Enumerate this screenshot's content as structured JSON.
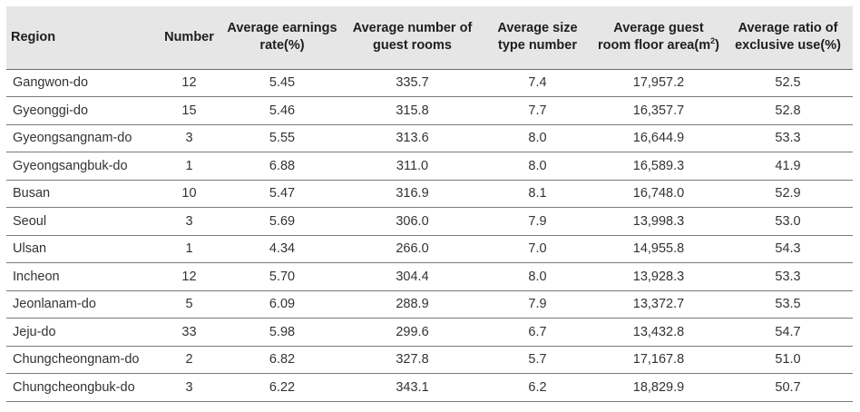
{
  "table": {
    "headers": {
      "region": "Region",
      "number": "Number",
      "earnings": "Average earnings rate(%)",
      "rooms": "Average number of guest rooms",
      "size_type": "Average size type number",
      "floor_area_main": "Average guest room floor area(m",
      "floor_area_sup": "2",
      "floor_area_close": ")",
      "exclusive": "Average ratio of exclusive use(%)"
    },
    "rows": [
      {
        "region": "Gangwon-do",
        "number": "12",
        "earnings": "5.45",
        "rooms": "335.7",
        "size_type": "7.4",
        "floor_area": "17,957.2",
        "exclusive": "52.5"
      },
      {
        "region": "Gyeonggi-do",
        "number": "15",
        "earnings": "5.46",
        "rooms": "315.8",
        "size_type": "7.7",
        "floor_area": "16,357.7",
        "exclusive": "52.8"
      },
      {
        "region": "Gyeongsangnam-do",
        "number": "3",
        "earnings": "5.55",
        "rooms": "313.6",
        "size_type": "8.0",
        "floor_area": "16,644.9",
        "exclusive": "53.3"
      },
      {
        "region": "Gyeongsangbuk-do",
        "number": "1",
        "earnings": "6.88",
        "rooms": "311.0",
        "size_type": "8.0",
        "floor_area": "16,589.3",
        "exclusive": "41.9"
      },
      {
        "region": "Busan",
        "number": "10",
        "earnings": "5.47",
        "rooms": "316.9",
        "size_type": "8.1",
        "floor_area": "16,748.0",
        "exclusive": "52.9"
      },
      {
        "region": "Seoul",
        "number": "3",
        "earnings": "5.69",
        "rooms": "306.0",
        "size_type": "7.9",
        "floor_area": "13,998.3",
        "exclusive": "53.0"
      },
      {
        "region": "Ulsan",
        "number": "1",
        "earnings": "4.34",
        "rooms": "266.0",
        "size_type": "7.0",
        "floor_area": "14,955.8",
        "exclusive": "54.3"
      },
      {
        "region": "Incheon",
        "number": "12",
        "earnings": "5.70",
        "rooms": "304.4",
        "size_type": "8.0",
        "floor_area": "13,928.3",
        "exclusive": "53.3"
      },
      {
        "region": "Jeonlanam-do",
        "number": "5",
        "earnings": "6.09",
        "rooms": "288.9",
        "size_type": "7.9",
        "floor_area": "13,372.7",
        "exclusive": "53.5"
      },
      {
        "region": "Jeju-do",
        "number": "33",
        "earnings": "5.98",
        "rooms": "299.6",
        "size_type": "6.7",
        "floor_area": "13,432.8",
        "exclusive": "54.7"
      },
      {
        "region": "Chungcheongnam-do",
        "number": "2",
        "earnings": "6.82",
        "rooms": "327.8",
        "size_type": "5.7",
        "floor_area": "17,167.8",
        "exclusive": "51.0"
      },
      {
        "region": "Chungcheongbuk-do",
        "number": "3",
        "earnings": "6.22",
        "rooms": "343.1",
        "size_type": "6.2",
        "floor_area": "18,829.9",
        "exclusive": "50.7"
      }
    ]
  },
  "colors": {
    "header_background": "#e6e6e6",
    "rule": "#7a7a7a",
    "text": "#333333"
  }
}
